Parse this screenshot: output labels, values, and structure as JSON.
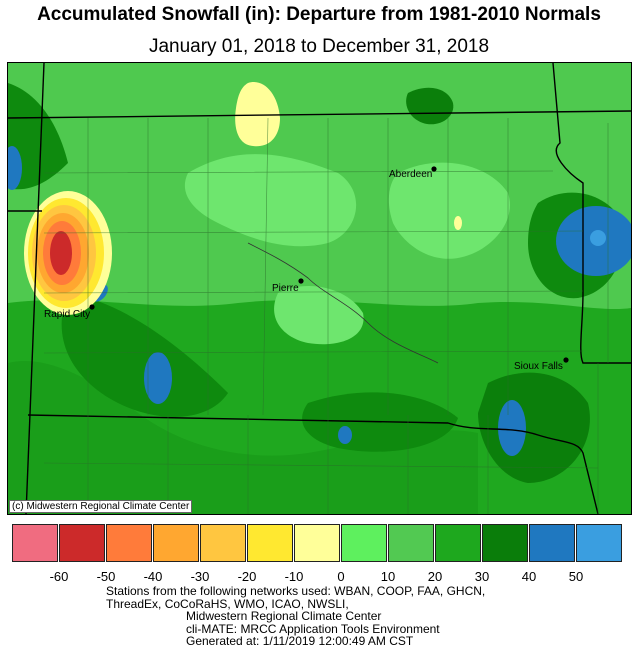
{
  "title": "Accumulated Snowfall (in): Departure from 1981-2010 Normals",
  "subtitle": "January 01, 2018 to December 31, 2018",
  "copyright": "(c) Midwestern Regional Climate Center",
  "cities": [
    {
      "name": "Aberdeen"
    },
    {
      "name": "Pierre"
    },
    {
      "name": "Rapid City"
    },
    {
      "name": "Sioux Falls"
    }
  ],
  "legend": {
    "colors": [
      "#f06c80",
      "#cc2a2a",
      "#ff7b3a",
      "#ffa730",
      "#ffc640",
      "#ffe830",
      "#ffff99",
      "#5ef05e",
      "#52c952",
      "#1ea81e",
      "#0a7d0a",
      "#1f78c0",
      "#3a9ee0"
    ],
    "ticks": [
      "-60",
      "-50",
      "-40",
      "-30",
      "-20",
      "-10",
      "0",
      "10",
      "20",
      "30",
      "40",
      "50"
    ]
  },
  "footer": {
    "line1": "Stations from the following networks used: WBAN, COOP, FAA, GHCN,",
    "line2": "ThreadEx, CoCoRaHS, WMO, ICAO, NWSLI,",
    "line3": "Midwestern Regional Climate Center",
    "line4": "cli-MATE: MRCC Application Tools Environment",
    "line5": "Generated at: 1/11/2019 12:00:49 AM CST"
  }
}
